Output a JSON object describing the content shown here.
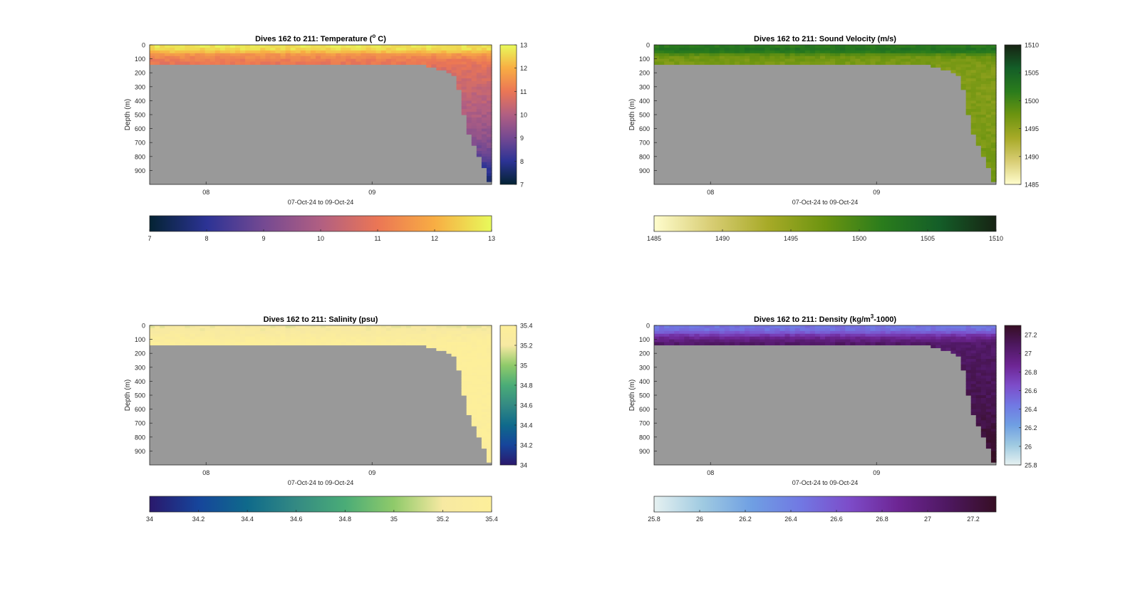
{
  "chart_data": [
    {
      "type": "heatmap",
      "title": "Dives 162 to 211: Temperature (° C)",
      "title_parts": [
        "Dives 162 to 211: Temperature (",
        "o",
        " C)"
      ],
      "ylabel": "Depth (m)",
      "xlabel": "07-Oct-24 to 09-Oct-24",
      "x_ticks": [
        "08",
        "09"
      ],
      "y_ticks": [
        "0",
        "100",
        "200",
        "300",
        "400",
        "500",
        "600",
        "700",
        "800",
        "900"
      ],
      "ylim": [
        0,
        1000
      ],
      "y_reversed": true,
      "xlim_days": [
        7.66,
        9.72
      ],
      "x_tick_days": [
        8.0,
        9.0
      ],
      "clim": [
        7,
        13
      ],
      "colorbar_ticks": [
        "7",
        "8",
        "9",
        "10",
        "11",
        "12",
        "13"
      ],
      "colorbar_tick_values": [
        7,
        8,
        9,
        10,
        11,
        12,
        13
      ],
      "horizontal_colorbar": true,
      "colormap": "thermal",
      "colors": [
        "#042333",
        "#2c3395",
        "#744992",
        "#b15f82",
        "#eb7655",
        "#f8ad43",
        "#e8fa5b"
      ],
      "mask_color": "#999999",
      "bottom_depth_profile": {
        "x_days": [
          7.66,
          9.0,
          9.3,
          9.5,
          9.54,
          9.58,
          9.64,
          9.72
        ],
        "depth_m": [
          130,
          130,
          130,
          205,
          410,
          620,
          780,
          1000
        ]
      },
      "profile": {
        "depth_m": [
          0,
          40,
          70,
          110,
          160,
          300,
          500,
          700,
          850,
          1000
        ],
        "value": [
          12.8,
          12.5,
          11.6,
          11.1,
          10.8,
          10.4,
          9.9,
          9.3,
          8.3,
          7.3
        ]
      }
    },
    {
      "type": "heatmap",
      "title": "Dives 162 to 211: Sound Velocity (m/s)",
      "ylabel": "Depth (m)",
      "xlabel": "07-Oct-24 to 09-Oct-24",
      "x_ticks": [
        "08",
        "09"
      ],
      "y_ticks": [
        "0",
        "100",
        "200",
        "300",
        "400",
        "500",
        "600",
        "700",
        "800",
        "900"
      ],
      "ylim": [
        0,
        1000
      ],
      "y_reversed": true,
      "xlim_days": [
        7.66,
        9.72
      ],
      "x_tick_days": [
        8.0,
        9.0
      ],
      "clim": [
        1485,
        1510
      ],
      "colorbar_ticks": [
        "1485",
        "1490",
        "1495",
        "1500",
        "1505",
        "1510"
      ],
      "colorbar_tick_values": [
        1485,
        1490,
        1495,
        1500,
        1505,
        1510
      ],
      "horizontal_colorbar": true,
      "colormap": "speed",
      "colors": [
        "#fffdcd",
        "#d8cd74",
        "#a7aa27",
        "#6c9410",
        "#2a7c1c",
        "#145e28",
        "#172313"
      ],
      "mask_color": "#999999",
      "bottom_depth_profile": {
        "x_days": [
          7.66,
          9.0,
          9.3,
          9.5,
          9.54,
          9.58,
          9.64,
          9.72
        ],
        "depth_m": [
          130,
          130,
          130,
          205,
          410,
          620,
          780,
          1000
        ]
      },
      "profile": {
        "depth_m": [
          0,
          40,
          80,
          130,
          200,
          400,
          600,
          800,
          1000
        ],
        "value": [
          1501.5,
          1503.5,
          1497.5,
          1496.5,
          1496.0,
          1496.0,
          1496.3,
          1496.6,
          1496.9
        ]
      }
    },
    {
      "type": "heatmap",
      "title": "Dives 162 to 211: Salinity (psu)",
      "ylabel": "Depth (m)",
      "xlabel": "07-Oct-24 to 09-Oct-24",
      "x_ticks": [
        "08",
        "09"
      ],
      "y_ticks": [
        "0",
        "100",
        "200",
        "300",
        "400",
        "500",
        "600",
        "700",
        "800",
        "900"
      ],
      "ylim": [
        0,
        1000
      ],
      "y_reversed": true,
      "xlim_days": [
        7.66,
        9.72
      ],
      "x_tick_days": [
        8.0,
        9.0
      ],
      "clim": [
        34,
        35.4
      ],
      "colorbar_ticks": [
        "34",
        "34.2",
        "34.4",
        "34.6",
        "34.8",
        "35",
        "35.2",
        "35.4"
      ],
      "colorbar_tick_values": [
        34,
        34.2,
        34.4,
        34.6,
        34.8,
        35,
        35.2,
        35.4
      ],
      "horizontal_colorbar": true,
      "colormap": "haline",
      "colors": [
        "#2a186c",
        "#16459b",
        "#0f6a8b",
        "#348a83",
        "#4aac77",
        "#8fca6a",
        "#f7e9a2",
        "#fdef9a"
      ],
      "mask_color": "#999999",
      "bottom_depth_profile": {
        "x_days": [
          7.66,
          9.0,
          9.3,
          9.5,
          9.54,
          9.58,
          9.64,
          9.72
        ],
        "depth_m": [
          130,
          130,
          130,
          205,
          410,
          620,
          780,
          1000
        ]
      },
      "profile": {
        "depth_m": [
          0,
          50,
          90,
          130,
          300,
          600,
          900,
          1000
        ],
        "value": [
          35.2,
          35.25,
          35.32,
          35.38,
          35.4,
          35.38,
          35.34,
          35.3
        ]
      }
    },
    {
      "type": "heatmap",
      "title": "Dives 162 to 211: Density (kg/m³-1000)",
      "title_parts": [
        "Dives 162 to 211: Density (kg/m",
        "3",
        "-1000)"
      ],
      "ylabel": "Depth (m)",
      "xlabel": "07-Oct-24 to 09-Oct-24",
      "x_ticks": [
        "08",
        "09"
      ],
      "y_ticks": [
        "0",
        "100",
        "200",
        "300",
        "400",
        "500",
        "600",
        "700",
        "800",
        "900"
      ],
      "ylim": [
        0,
        1000
      ],
      "y_reversed": true,
      "xlim_days": [
        7.66,
        9.72
      ],
      "x_tick_days": [
        8.0,
        9.0
      ],
      "clim": [
        25.8,
        27.3
      ],
      "colorbar_ticks": [
        "25.8",
        "26",
        "26.2",
        "26.4",
        "26.6",
        "26.8",
        "27",
        "27.2"
      ],
      "colorbar_tick_values": [
        25.8,
        26,
        26.2,
        26.4,
        26.6,
        26.8,
        27,
        27.2
      ],
      "horizontal_colorbar": true,
      "colormap": "dense",
      "colors": [
        "#e6f1f1",
        "#9fcae1",
        "#6f9fe3",
        "#7178e3",
        "#7d4cc9",
        "#6d2593",
        "#4e1861",
        "#360e24"
      ],
      "mask_color": "#999999",
      "bottom_depth_profile": {
        "x_days": [
          7.66,
          9.0,
          9.3,
          9.5,
          9.54,
          9.58,
          9.64,
          9.72
        ],
        "depth_m": [
          130,
          130,
          130,
          205,
          410,
          620,
          780,
          1000
        ]
      },
      "profile": {
        "depth_m": [
          0,
          40,
          80,
          130,
          300,
          600,
          900,
          1000
        ],
        "value": [
          26.45,
          26.5,
          26.85,
          27.05,
          27.1,
          27.15,
          27.25,
          27.3
        ]
      }
    }
  ]
}
